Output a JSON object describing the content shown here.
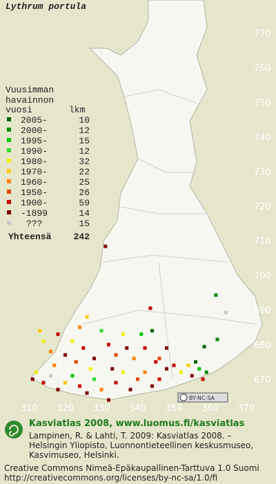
{
  "title": "Lythrum portula",
  "legend": {
    "heading": [
      "Vuusimman",
      "havainnon"
    ],
    "col_year": "vuosi",
    "col_count": "lkm",
    "rows": [
      {
        "label": "2005-",
        "count": "10",
        "color": "#006400"
      },
      {
        "label": "2000-",
        "count": "12",
        "color": "#008c00"
      },
      {
        "label": "1995-",
        "count": "15",
        "color": "#00c800"
      },
      {
        "label": "1990-",
        "count": "12",
        "color": "#32dc32"
      },
      {
        "label": "1980-",
        "count": "32",
        "color": "#f0f000"
      },
      {
        "label": "1970-",
        "count": "22",
        "color": "#ffc800"
      },
      {
        "label": "1960-",
        "count": "25",
        "color": "#ff8200"
      },
      {
        "label": "1950-",
        "count": "26",
        "color": "#e64600"
      },
      {
        "label": "1900-",
        "count": "59",
        "color": "#c80000"
      },
      {
        "label": "-1899",
        "count": "14",
        "color": "#820000"
      },
      {
        "label": "???",
        "count": "15",
        "color": "#c8c8c8"
      }
    ],
    "total_label": "Yhteensä",
    "total": "242"
  },
  "grid": {
    "y_labels": [
      770,
      760,
      750,
      740,
      730,
      720,
      710,
      700,
      690,
      680,
      670
    ],
    "x_labels": [
      310,
      320,
      330,
      340,
      350,
      360,
      370
    ]
  },
  "points": [
    [
      331.1,
      708.4,
      9
    ],
    [
      361.6,
      694.3,
      1
    ],
    [
      364.3,
      689.3,
      10
    ],
    [
      343.5,
      690.5,
      8
    ],
    [
      358.4,
      679.4,
      0
    ],
    [
      362,
      681.5,
      1
    ],
    [
      313,
      684,
      5
    ],
    [
      314,
      681,
      4
    ],
    [
      316,
      678,
      6
    ],
    [
      318,
      683,
      8
    ],
    [
      320,
      677,
      9
    ],
    [
      322,
      681,
      4
    ],
    [
      324,
      685,
      6
    ],
    [
      326,
      688,
      5
    ],
    [
      325,
      679,
      8
    ],
    [
      328,
      676,
      9
    ],
    [
      330,
      684,
      3
    ],
    [
      332,
      680,
      8
    ],
    [
      334,
      677,
      7
    ],
    [
      336,
      683,
      4
    ],
    [
      337,
      679,
      9
    ],
    [
      339,
      676,
      6
    ],
    [
      341,
      683,
      2
    ],
    [
      342,
      679,
      8
    ],
    [
      344,
      684,
      0
    ],
    [
      346,
      676,
      7
    ],
    [
      348,
      679,
      9
    ],
    [
      350,
      674,
      8
    ],
    [
      352,
      672,
      4
    ],
    [
      354,
      674,
      5
    ],
    [
      355,
      671,
      9
    ],
    [
      357,
      673,
      2
    ],
    [
      358,
      670,
      8
    ],
    [
      359,
      672,
      1
    ],
    [
      356,
      675,
      0
    ],
    [
      311,
      670,
      9
    ],
    [
      312,
      672,
      4
    ],
    [
      314,
      669,
      8
    ],
    [
      316,
      671,
      10
    ],
    [
      318,
      667,
      9
    ],
    [
      320,
      669,
      5
    ],
    [
      322,
      671,
      2
    ],
    [
      324,
      668,
      8
    ],
    [
      326,
      666,
      9
    ],
    [
      328,
      670,
      3
    ],
    [
      330,
      667,
      6
    ],
    [
      332,
      664,
      9
    ],
    [
      334,
      669,
      8
    ],
    [
      336,
      672,
      4
    ],
    [
      338,
      667,
      9
    ],
    [
      340,
      670,
      7
    ],
    [
      342,
      672,
      6
    ],
    [
      344,
      668,
      9
    ],
    [
      346,
      670,
      8
    ],
    [
      348,
      673,
      9
    ],
    [
      323,
      675,
      7
    ],
    [
      327,
      673,
      4
    ],
    [
      333,
      673,
      9
    ],
    [
      345,
      675,
      8
    ],
    [
      317,
      674,
      6
    ]
  ],
  "badge": "BY-NC-SA",
  "footer": {
    "site": "Kasviatlas 2008, www.luomus.fi/kasviatlas",
    "citation": [
      "Lampinen, R. & Lahti, T. 2009: Kasviatlas 2008. –",
      "Helsingin Yliopisto, Luonnontieteellinen keskusmuseo,",
      "Kasvimuseo, Helsinki."
    ],
    "license": [
      "Creative Commons Nimeä-Epäkaupallinen-Tarttuva 1.0 Suomi",
      "http://creativecommons.org/licenses/by-nc-sa/1.0/fi"
    ]
  }
}
